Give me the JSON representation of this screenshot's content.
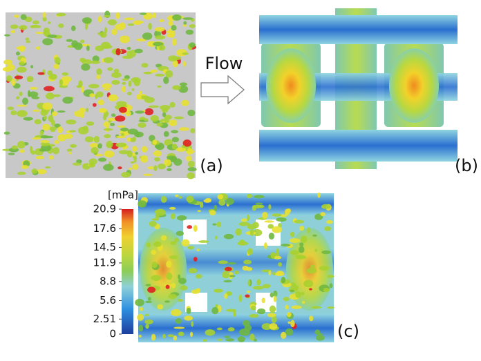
{
  "flow_label": "Flow",
  "panels": [
    {
      "label": "(a)"
    },
    {
      "label": "(b)"
    },
    {
      "label": "(c)"
    }
  ],
  "colorbar": {
    "unit": "[mPa]",
    "range": [
      0,
      20.9
    ],
    "ticks": [
      20.9,
      17.6,
      14.5,
      11.9,
      8.8,
      5.6,
      2.51,
      0
    ]
  }
}
